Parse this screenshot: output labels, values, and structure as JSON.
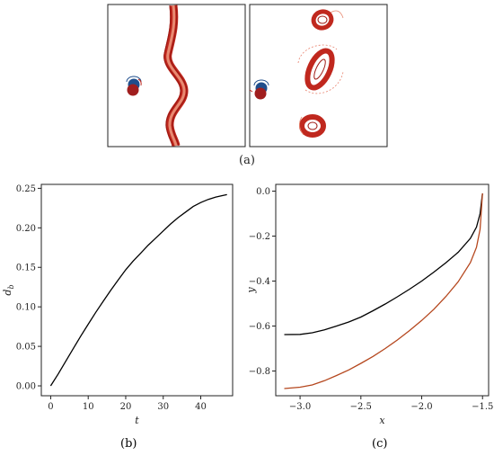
{
  "captions": {
    "a": "(a)",
    "b": "(b)",
    "c": "(c)"
  },
  "panel_a": {
    "description_free": true,
    "colors": {
      "vortex_red": "#c0281e",
      "vortex_light": "#e8836f",
      "blue": "#1f4e8c",
      "dark_red": "#a01e1e"
    }
  },
  "chart_data": [
    {
      "type": "line",
      "panel": "(b)",
      "xlabel": "t",
      "ylabel": "d_b",
      "xlim": [
        -2.5,
        48.5
      ],
      "ylim": [
        -0.0125,
        0.255
      ],
      "xticks": [
        "0",
        "10",
        "20",
        "30",
        "40"
      ],
      "yticks": [
        "0.00",
        "0.05",
        "0.10",
        "0.15",
        "0.20",
        "0.25"
      ],
      "grid": false,
      "series": [
        {
          "color": "#000000",
          "x": [
            0,
            2,
            4,
            6,
            8,
            10,
            12,
            14,
            16,
            18,
            20,
            22,
            24,
            26,
            28,
            30,
            32,
            34,
            36,
            38,
            40,
            42,
            44,
            46,
            47
          ],
          "y": [
            0.0,
            0.015,
            0.031,
            0.047,
            0.063,
            0.078,
            0.093,
            0.107,
            0.121,
            0.134,
            0.147,
            0.158,
            0.168,
            0.178,
            0.187,
            0.196,
            0.205,
            0.213,
            0.22,
            0.227,
            0.232,
            0.236,
            0.239,
            0.241,
            0.242
          ]
        }
      ]
    },
    {
      "type": "line",
      "panel": "(c)",
      "xlabel": "x",
      "ylabel": "y",
      "xlim": [
        -3.2,
        -1.45
      ],
      "ylim": [
        -0.91,
        0.03
      ],
      "xticks": [
        "−3.0",
        "−2.5",
        "−2.0",
        "−1.5"
      ],
      "yticks": [
        "0.0",
        "−0.2",
        "−0.4",
        "−0.6",
        "−0.8"
      ],
      "grid": false,
      "series": [
        {
          "color": "#000000",
          "x": [
            -3.13,
            -3.0,
            -2.9,
            -2.8,
            -2.7,
            -2.6,
            -2.5,
            -2.4,
            -2.3,
            -2.2,
            -2.1,
            -2.0,
            -1.9,
            -1.8,
            -1.7,
            -1.6,
            -1.55,
            -1.52,
            -1.5
          ],
          "y": [
            -0.638,
            -0.637,
            -0.63,
            -0.617,
            -0.6,
            -0.582,
            -0.56,
            -0.532,
            -0.502,
            -0.47,
            -0.436,
            -0.4,
            -0.36,
            -0.318,
            -0.272,
            -0.21,
            -0.16,
            -0.1,
            -0.01
          ]
        },
        {
          "color": "#b5471e",
          "x": [
            -3.13,
            -3.0,
            -2.9,
            -2.8,
            -2.7,
            -2.6,
            -2.5,
            -2.4,
            -2.3,
            -2.2,
            -2.1,
            -2.0,
            -1.9,
            -1.8,
            -1.7,
            -1.6,
            -1.55,
            -1.52,
            -1.5
          ],
          "y": [
            -0.878,
            -0.872,
            -0.862,
            -0.843,
            -0.82,
            -0.795,
            -0.766,
            -0.735,
            -0.7,
            -0.662,
            -0.62,
            -0.575,
            -0.525,
            -0.468,
            -0.403,
            -0.318,
            -0.25,
            -0.17,
            -0.01
          ]
        }
      ]
    }
  ]
}
